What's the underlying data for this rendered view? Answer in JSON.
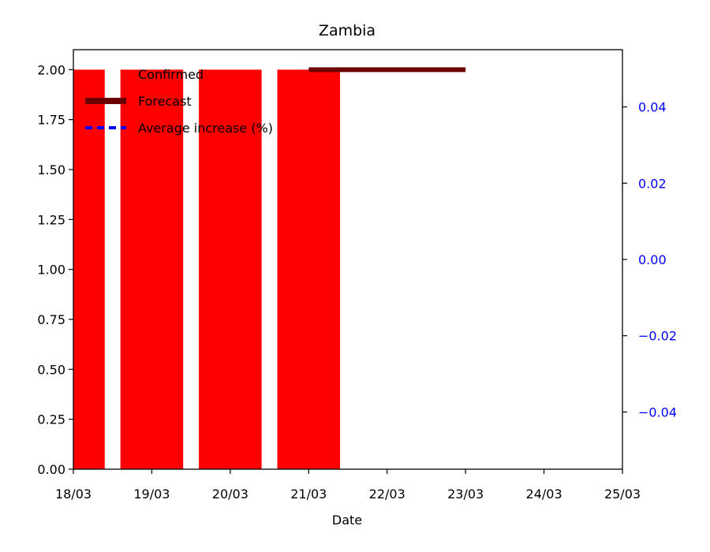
{
  "chart_data": {
    "type": "bar",
    "title": "Zambia",
    "xlabel": "Date",
    "ylabel": "",
    "ylabel_right": "",
    "x_ticks": [
      "18/03",
      "19/03",
      "20/03",
      "21/03",
      "22/03",
      "23/03",
      "24/03",
      "25/03"
    ],
    "xlim": [
      0,
      7
    ],
    "ylim": [
      0,
      2.1
    ],
    "y_ticks": [
      0.0,
      0.25,
      0.5,
      0.75,
      1.0,
      1.25,
      1.5,
      1.75,
      2.0
    ],
    "ylim_right": [
      -0.055,
      0.055
    ],
    "y_ticks_right": [
      -0.04,
      -0.02,
      0.0,
      0.02,
      0.04
    ],
    "right_axis_color": "#0000ff",
    "series": [
      {
        "name": "Confirmed",
        "kind": "bar",
        "color": "#ff0000",
        "bars": [
          {
            "x_start": 0.0,
            "x_end": 0.4,
            "value": 2
          },
          {
            "x_start": 0.6,
            "x_end": 1.4,
            "value": 2
          },
          {
            "x_start": 1.6,
            "x_end": 2.4,
            "value": 2
          },
          {
            "x_start": 2.6,
            "x_end": 3.4,
            "value": 2
          }
        ]
      },
      {
        "name": "Forecast",
        "kind": "line",
        "color": "#6b0000",
        "x": [
          3.0,
          5.0
        ],
        "y": [
          2,
          2
        ]
      },
      {
        "name": "Average increase (%)",
        "kind": "line",
        "color": "#0000ff",
        "style": "dashed",
        "x": [],
        "y": []
      }
    ],
    "legend_position": "top-left",
    "grid": false
  }
}
